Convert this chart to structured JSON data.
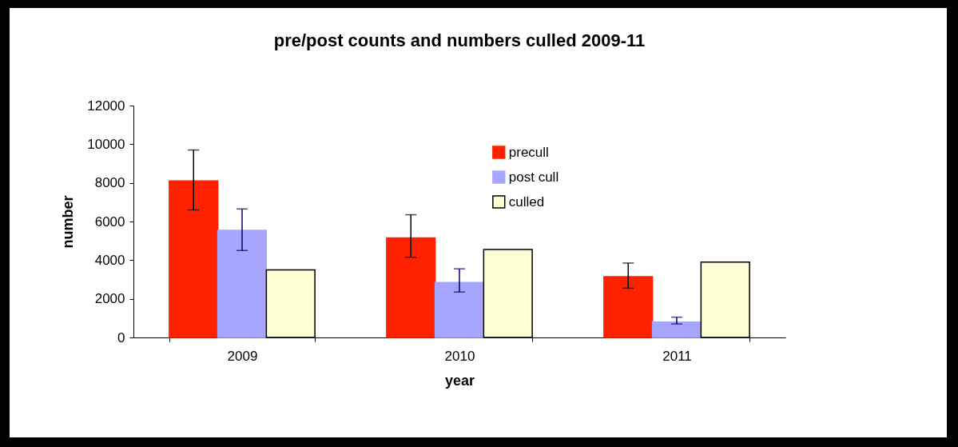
{
  "chart_data": {
    "type": "bar",
    "title": "pre/post counts and numbers culled 2009-11",
    "xlabel": "year",
    "ylabel": "number",
    "categories": [
      "2009",
      "2010",
      "2011"
    ],
    "series": [
      {
        "name": "precull",
        "color": "#ff2200",
        "values": [
          8100,
          5150,
          3150
        ],
        "errors": [
          [
            6600,
            9700
          ],
          [
            4150,
            6350
          ],
          [
            2550,
            3850
          ]
        ]
      },
      {
        "name": "post cull",
        "color": "#a6a6ff",
        "values": [
          5550,
          2850,
          800
        ],
        "errors": [
          [
            4500,
            6650
          ],
          [
            2350,
            3550
          ],
          [
            700,
            1050
          ]
        ]
      },
      {
        "name": "culled",
        "color": "#ffffd5",
        "values": [
          3500,
          4550,
          3900
        ]
      }
    ],
    "ylim": [
      0,
      12000
    ],
    "yticks": [
      0,
      2000,
      4000,
      6000,
      8000,
      10000,
      12000
    ],
    "legend": "top"
  }
}
